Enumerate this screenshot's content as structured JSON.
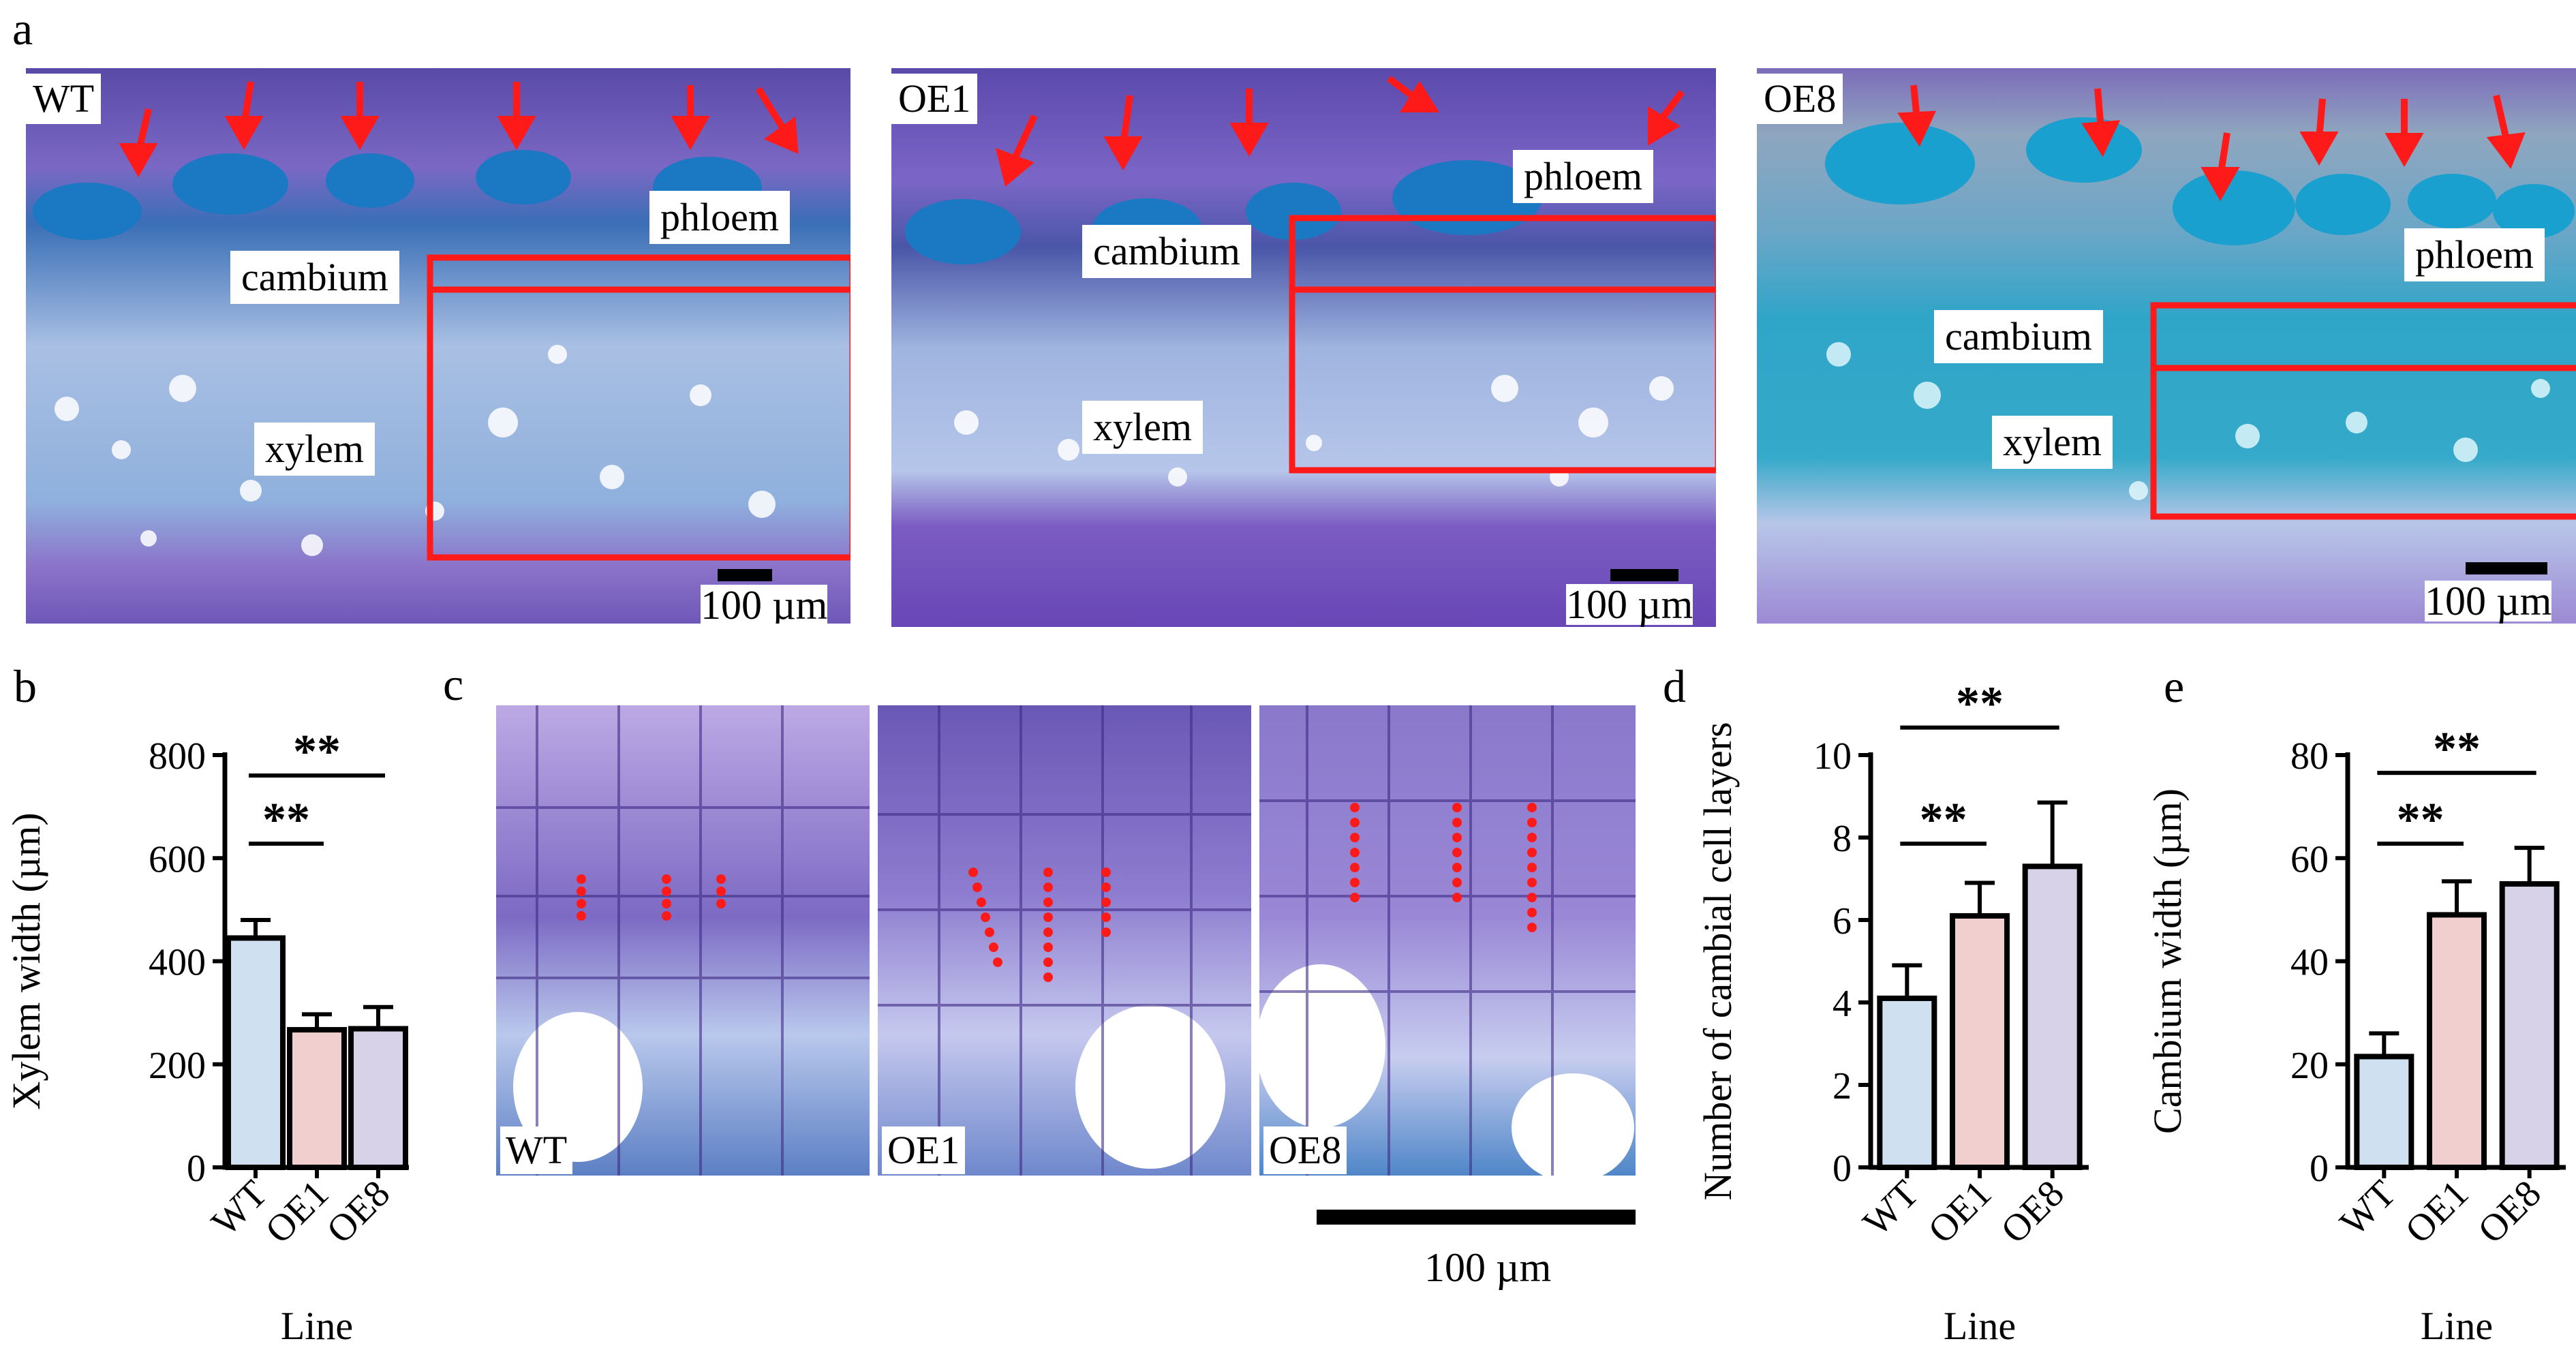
{
  "panel_a": {
    "letter": "a",
    "images": [
      {
        "line": "WT",
        "labels": {
          "phloem": "phloem",
          "cambium": "cambium",
          "xylem": "xylem"
        },
        "scale": "100 µm"
      },
      {
        "line": "OE1",
        "labels": {
          "phloem": "phloem",
          "cambium": "cambium",
          "xylem": "xylem"
        },
        "scale": "100 µm"
      },
      {
        "line": "OE8",
        "labels": {
          "phloem": "phloem",
          "cambium": "cambium",
          "xylem": "xylem"
        },
        "scale": "100 µm"
      }
    ]
  },
  "panel_c": {
    "letter": "c",
    "images": [
      {
        "line": "WT",
        "dotted_files": [
          4,
          4,
          3
        ]
      },
      {
        "line": "OE1",
        "dotted_files": [
          7,
          8,
          5
        ]
      },
      {
        "line": "OE8",
        "dotted_files": [
          7,
          7,
          9
        ]
      }
    ],
    "scale": "100 µm"
  },
  "colors": {
    "wt": "#cfe0f1",
    "oe1": "#f2cfcf",
    "oe8": "#d8d2e8",
    "marker": "#ff1a1a"
  },
  "chart_data": [
    {
      "panel": "b",
      "type": "bar",
      "categories": [
        "WT",
        "OE1",
        "OE8"
      ],
      "values": [
        445,
        267,
        269
      ],
      "errors": [
        35,
        30,
        42
      ],
      "xlabel": "Line",
      "ylabel": "Xylem width (µm)",
      "ylim": [
        0,
        800
      ],
      "yticks": [
        "0",
        "200",
        "400",
        "600",
        "800"
      ],
      "annotations": [
        {
          "text": "**",
          "from": "WT",
          "to": "OE1"
        },
        {
          "text": "**",
          "from": "WT",
          "to": "OE8"
        }
      ]
    },
    {
      "panel": "d",
      "type": "bar",
      "categories": [
        "WT",
        "OE1",
        "OE8"
      ],
      "values": [
        4.1,
        6.1,
        7.3
      ],
      "errors": [
        0.8,
        0.8,
        1.55
      ],
      "xlabel": "Line",
      "ylabel": "Number of cambial cell layers",
      "ylim": [
        0,
        10
      ],
      "yticks": [
        "0",
        "2",
        "4",
        "6",
        "8",
        "10"
      ],
      "annotations": [
        {
          "text": "**",
          "from": "WT",
          "to": "OE1"
        },
        {
          "text": "**",
          "from": "WT",
          "to": "OE8"
        }
      ]
    },
    {
      "panel": "e",
      "type": "bar",
      "categories": [
        "WT",
        "OE1",
        "OE8"
      ],
      "values": [
        21.5,
        49,
        55
      ],
      "errors": [
        4.5,
        6.5,
        7
      ],
      "xlabel": "Line",
      "ylabel": "Cambium width (µm)",
      "ylim": [
        0,
        80
      ],
      "yticks": [
        "0",
        "20",
        "40",
        "60",
        "80"
      ],
      "annotations": [
        {
          "text": "**",
          "from": "WT",
          "to": "OE1"
        },
        {
          "text": "**",
          "from": "WT",
          "to": "OE8"
        }
      ]
    }
  ]
}
